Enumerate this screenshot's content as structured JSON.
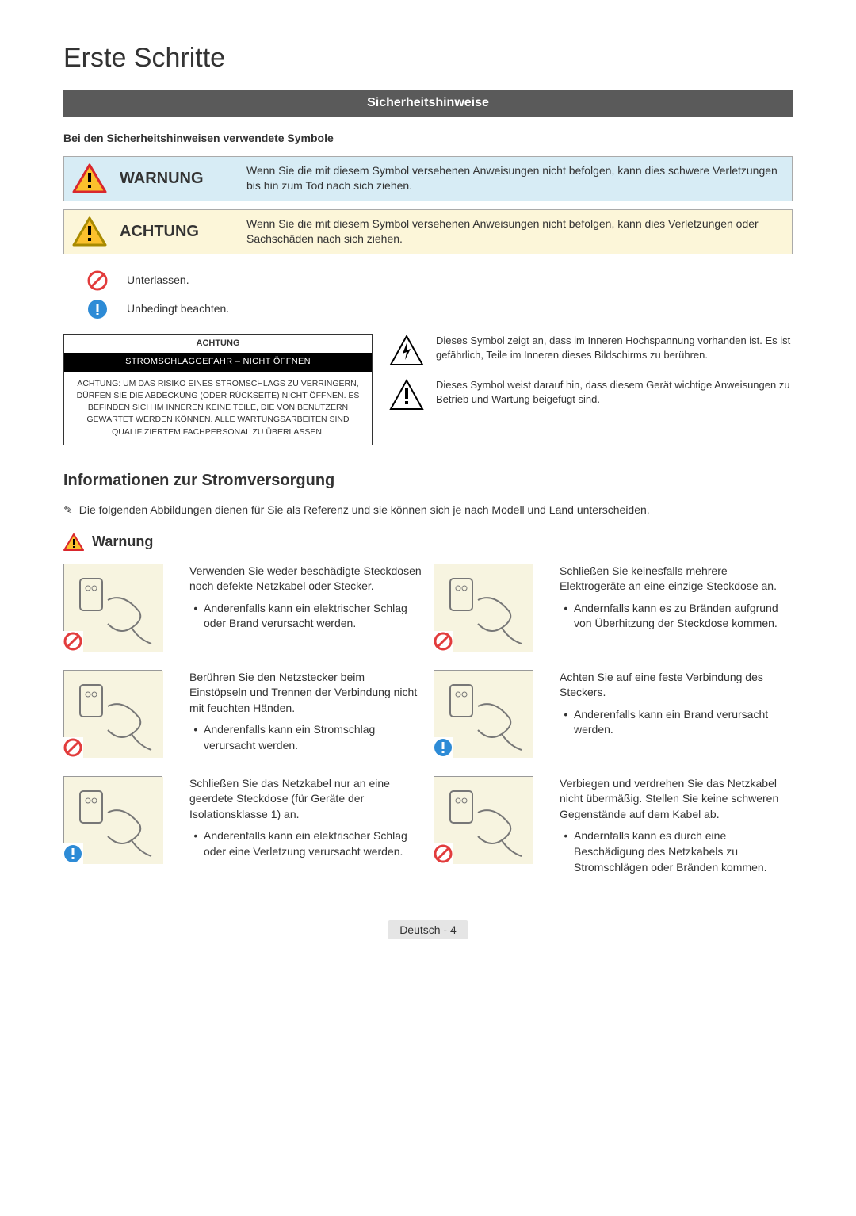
{
  "page_title": "Erste Schritte",
  "banner": "Sicherheitshinweise",
  "symbols_intro": "Bei den Sicherheitshinweisen verwendete Symbole",
  "warn_box": {
    "label": "WARNUNG",
    "desc": "Wenn Sie die mit diesem Symbol versehenen Anweisungen nicht befolgen, kann dies schwere Verletzungen bis hin zum Tod nach sich ziehen."
  },
  "caution_box": {
    "label": "ACHTUNG",
    "desc": "Wenn Sie die mit diesem Symbol versehenen Anweisungen nicht befolgen, kann dies Verletzungen oder Sachschäden nach sich ziehen."
  },
  "legend": {
    "prohibit": "Unterlassen.",
    "must": "Unbedingt beachten."
  },
  "framed": {
    "head": "ACHTUNG",
    "black": "STROMSCHLAGGEFAHR – NICHT ÖFFNEN",
    "body": "ACHTUNG: UM DAS RISIKO EINES STROMSCHLAGS ZU VERRINGERN, DÜRFEN SIE DIE ABDECKUNG (ODER RÜCKSEITE) NICHT ÖFFNEN. ES BEFINDEN SICH IM INNEREN KEINE TEILE, DIE VON BENUTZERN GEWARTET WERDEN KÖNNEN. ALLE WARTUNGSARBEITEN SIND QUALIFIZIERTEM FACHPERSONAL ZU ÜBERLASSEN."
  },
  "tri_bolt": "Dieses Symbol zeigt an, dass im Inneren Hochspannung vorhanden ist. Es ist gefährlich, Teile im Inneren dieses Bildschirms zu berühren.",
  "tri_excl": "Dieses Symbol weist darauf hin, dass diesem Gerät wichtige Anweisungen zu Betrieb und Wartung beigefügt sind.",
  "section_power": "Informationen zur Stromversorgung",
  "note": "Die folgenden Abbildungen dienen für Sie als Referenz und sie können sich je nach Modell und Land unterscheiden.",
  "warn_h3": "Warnung",
  "items": [
    {
      "text": "Verwenden Sie weder beschädigte Steckdosen noch defekte Netzkabel oder Stecker.",
      "bullet": "Anderenfalls kann ein elektrischer Schlag oder Brand verursacht werden.",
      "badge": "prohibit"
    },
    {
      "text": "Schließen Sie keinesfalls mehrere Elektrogeräte an eine einzige Steckdose an.",
      "bullet": "Andernfalls kann es zu Bränden aufgrund von Überhitzung der Steckdose kommen.",
      "badge": "prohibit"
    },
    {
      "text": "Berühren Sie den Netzstecker beim Einstöpseln und Trennen der Verbindung nicht mit feuchten Händen.",
      "bullet": "Anderenfalls kann ein Stromschlag verursacht werden.",
      "badge": "prohibit"
    },
    {
      "text": "Achten Sie auf eine feste Verbindung des Steckers.",
      "bullet": "Anderenfalls kann ein Brand verursacht werden.",
      "badge": "must"
    },
    {
      "text": "Schließen Sie das Netzkabel nur an eine geerdete Steckdose (für Geräte der Isolationsklasse 1) an.",
      "bullet": "Anderenfalls kann ein elektrischer Schlag oder eine Verletzung verursacht werden.",
      "badge": "must"
    },
    {
      "text": "Verbiegen und verdrehen Sie das Netzkabel nicht übermäßig. Stellen Sie keine schweren Gegenstände auf dem Kabel ab.",
      "bullet": "Andernfalls kann es durch eine Beschädigung des Netzkabels zu Stromschlägen oder Bränden kommen.",
      "badge": "prohibit"
    }
  ],
  "footer": {
    "lang": "Deutsch",
    "page": "4"
  },
  "colors": {
    "warn_red": "#d9272d",
    "warn_yellow": "#fbc02d",
    "blue_bg": "#d7ecf5",
    "yellow_bg": "#fcf6d9",
    "prohibit_red": "#e23c3c",
    "must_blue": "#2d8bd6"
  }
}
